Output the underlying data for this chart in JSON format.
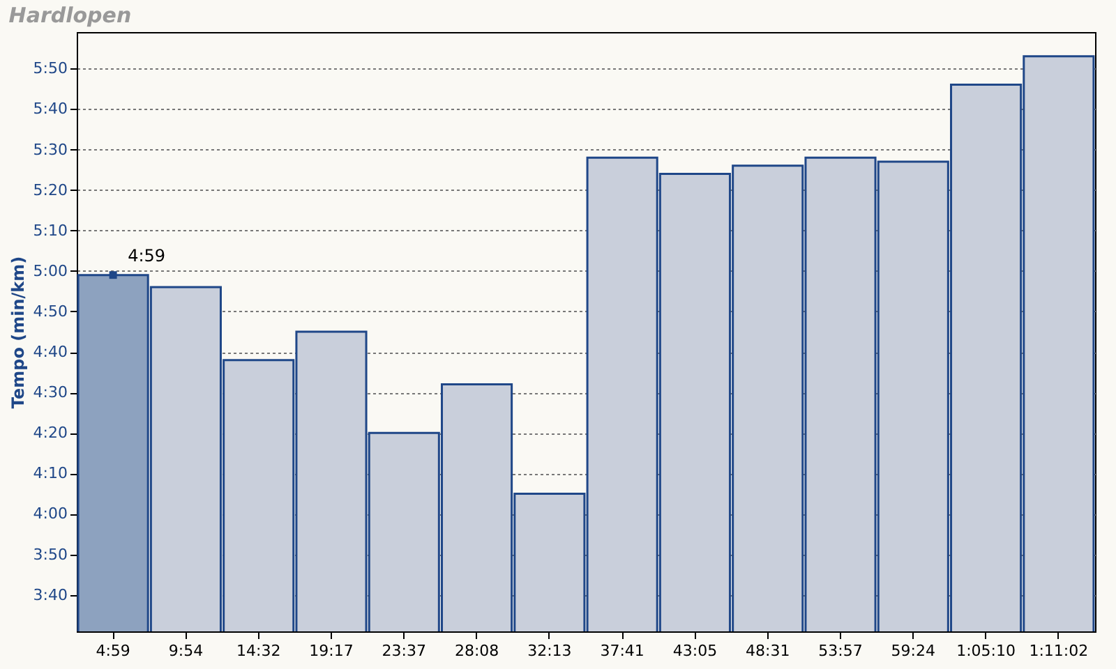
{
  "chart_data": {
    "type": "bar",
    "title": "Hardlopen",
    "ylabel": "Tempo (min/km)",
    "categories": [
      "4:59",
      "9:54",
      "14:32",
      "19:17",
      "23:37",
      "28:08",
      "32:13",
      "37:41",
      "43:05",
      "48:31",
      "53:57",
      "59:24",
      "1:05:10",
      "1:11:02"
    ],
    "values": [
      299,
      296,
      278,
      285,
      260,
      272,
      245,
      328,
      324,
      326,
      328,
      327,
      346,
      353
    ],
    "colors": [
      "#8da2bf",
      "#c9cfdb",
      "#c9cfdb",
      "#c9cfdb",
      "#c9cfdb",
      "#c9cfdb",
      "#c9cfdb",
      "#c9cfdb",
      "#c9cfdb",
      "#c9cfdb",
      "#c9cfdb",
      "#c9cfdb",
      "#c9cfdb",
      "#c9cfdb"
    ],
    "ylim": [
      211,
      359
    ],
    "yticks": [
      {
        "value": 220,
        "label": "3:40"
      },
      {
        "value": 230,
        "label": "3:50"
      },
      {
        "value": 240,
        "label": "4:00"
      },
      {
        "value": 250,
        "label": "4:10"
      },
      {
        "value": 260,
        "label": "4:20"
      },
      {
        "value": 270,
        "label": "4:30"
      },
      {
        "value": 280,
        "label": "4:40"
      },
      {
        "value": 290,
        "label": "4:50"
      },
      {
        "value": 300,
        "label": "5:00"
      },
      {
        "value": 310,
        "label": "5:10"
      },
      {
        "value": 320,
        "label": "5:20"
      },
      {
        "value": 330,
        "label": "5:30"
      },
      {
        "value": 340,
        "label": "5:40"
      },
      {
        "value": 350,
        "label": "5:50"
      }
    ],
    "annotations": [
      {
        "text": "4:59",
        "x": "4:59",
        "y": 299
      }
    ],
    "grid": "y"
  }
}
